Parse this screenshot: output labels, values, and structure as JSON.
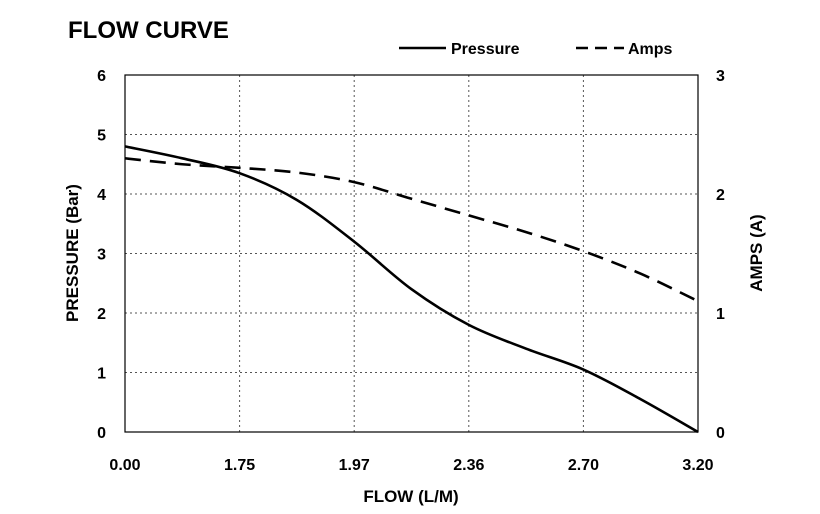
{
  "chart_data": {
    "type": "line",
    "title": "FLOW CURVE",
    "xlabel": "FLOW (L/M)",
    "ylabel": "PRESSURE (Bar)",
    "y2label": "AMPS (A)",
    "categories": [
      "0.00",
      "1.75",
      "1.97",
      "2.36",
      "2.70",
      "3.20"
    ],
    "x": [
      0,
      0.5,
      1,
      1.5,
      2,
      2.5,
      3,
      3.5,
      4,
      4.5,
      5
    ],
    "xlim": [
      0,
      5
    ],
    "ylim": [
      0,
      6
    ],
    "y2lim": [
      0,
      3
    ],
    "yticks": [
      "0",
      "1",
      "2",
      "3",
      "4",
      "5",
      "6"
    ],
    "y2ticks": [
      "0",
      "1",
      "2",
      "3"
    ],
    "grid": true,
    "legend": "top-right",
    "series": [
      {
        "name": "Pressure",
        "axis": "left",
        "style": "solid",
        "values": [
          4.8,
          4.6,
          4.35,
          3.9,
          3.2,
          2.4,
          1.8,
          1.4,
          1.05,
          0.55,
          0.0
        ]
      },
      {
        "name": "Amps",
        "axis": "right",
        "style": "dashed",
        "values": [
          2.3,
          2.25,
          2.22,
          2.18,
          2.1,
          1.96,
          1.82,
          1.68,
          1.52,
          1.33,
          1.1
        ]
      }
    ]
  }
}
